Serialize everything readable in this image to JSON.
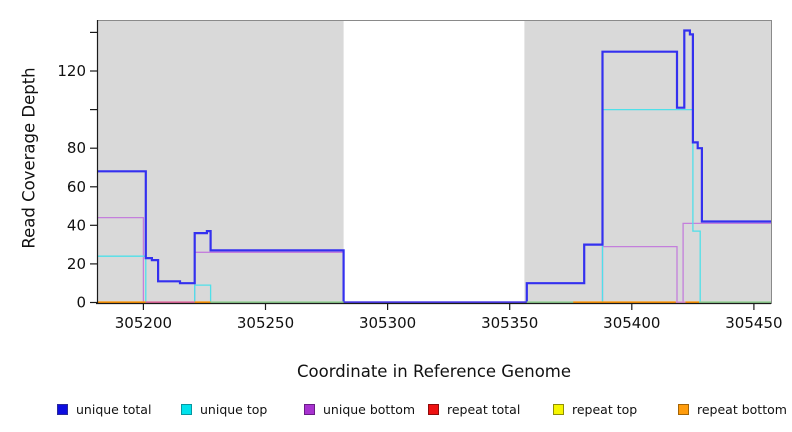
{
  "figure": {
    "x_axis_title": "Coordinate in Reference Genome",
    "y_axis_title": "Read Coverage Depth"
  },
  "legend": {
    "items": [
      {
        "label": "unique total",
        "color": "#0d0de0",
        "border": "#2a2a9a"
      },
      {
        "label": "unique top",
        "color": "#00e2ec",
        "border": "#0897a0"
      },
      {
        "label": "unique bottom",
        "color": "#a832d0",
        "border": "#6a1d86"
      },
      {
        "label": "repeat total",
        "color": "#ee1111",
        "border": "#8e0b0b"
      },
      {
        "label": "repeat top",
        "color": "#f6f600",
        "border": "#8f8f06"
      },
      {
        "label": "repeat bottom",
        "color": "#ff9c0c",
        "border": "#a36406"
      }
    ]
  },
  "chart_data": {
    "type": "line",
    "subtype": "step",
    "title": "",
    "xlabel": "Coordinate in Reference Genome",
    "ylabel": "Read Coverage Depth",
    "xlim": [
      305181,
      305457
    ],
    "ylim": [
      0,
      146
    ],
    "grid": false,
    "legend_position": "bottom",
    "x_ticks": [
      305200,
      305250,
      305300,
      305350,
      305400,
      305450
    ],
    "x_tick_labels": [
      "305200",
      "305250",
      "305300",
      "305350",
      "305400",
      "305450"
    ],
    "y_ticks": [
      0,
      20,
      40,
      60,
      80,
      100,
      120,
      140
    ],
    "y_tick_labels": [
      "0",
      "20",
      "40",
      "60",
      "80",
      "",
      "120",
      ""
    ],
    "plot_bg": "#ffffff",
    "shaded_regions": [
      {
        "from": 305181,
        "to": 305282,
        "color": "#d9d9d9"
      },
      {
        "from": 305356,
        "to": 305457,
        "color": "#d9d9d9"
      }
    ],
    "series": [
      {
        "name": "unique total",
        "color": "#3430ef",
        "width": 2.2,
        "steps": [
          [
            305181,
            68
          ],
          [
            305201,
            23
          ],
          [
            305203.5,
            22
          ],
          [
            305206,
            11
          ],
          [
            305215,
            10
          ],
          [
            305221,
            36
          ],
          [
            305226,
            37
          ],
          [
            305227.5,
            27
          ],
          [
            305282,
            0
          ],
          [
            305357,
            10
          ],
          [
            305380.5,
            30
          ],
          [
            305388,
            130
          ],
          [
            305418.5,
            101
          ],
          [
            305421.5,
            141
          ],
          [
            305423.8,
            139
          ],
          [
            305425,
            83
          ],
          [
            305427,
            80
          ],
          [
            305428.7,
            42
          ]
        ]
      },
      {
        "name": "unique top",
        "color": "#4fe0e9",
        "width": 1.3,
        "steps": [
          [
            305181,
            24
          ],
          [
            305201,
            0
          ],
          [
            305221,
            9
          ],
          [
            305227.5,
            0
          ],
          [
            305388,
            100
          ],
          [
            305425,
            37
          ],
          [
            305428,
            0
          ]
        ]
      },
      {
        "name": "unique bottom",
        "color": "#c47fdc",
        "width": 1.3,
        "steps": [
          [
            305181,
            44
          ],
          [
            305200,
            0
          ],
          [
            305221,
            26
          ],
          [
            305282,
            0
          ],
          [
            305388,
            29
          ],
          [
            305418.5,
            0
          ],
          [
            305421,
            41
          ]
        ]
      },
      {
        "name": "repeat total",
        "color": "#dd2222",
        "width": 1.3,
        "steps": [
          [
            305181,
            0
          ]
        ]
      },
      {
        "name": "repeat top",
        "color": "#f2f200",
        "width": 1.3,
        "steps": [
          [
            305181,
            0
          ]
        ]
      },
      {
        "name": "repeat bottom",
        "color": "#ff9300",
        "width": 1.3,
        "steps": [
          [
            305181,
            0
          ]
        ]
      }
    ],
    "baseline_segments": [
      [
        305181,
        305201,
        "#ff9300"
      ],
      [
        305201,
        305221,
        "#e2679c"
      ],
      [
        305221,
        305227.5,
        "#ff9300"
      ],
      [
        305227.5,
        305282,
        "#8fcf8f"
      ],
      [
        305282,
        305357,
        "#4b3be8"
      ],
      [
        305357,
        305376,
        "#8fcf8f"
      ],
      [
        305376,
        305418,
        "#ff9300"
      ],
      [
        305418,
        305422,
        "#dc8fd0"
      ],
      [
        305422,
        305427.5,
        "#ff9300"
      ],
      [
        305427.5,
        305457,
        "#8fcf8f"
      ]
    ]
  }
}
